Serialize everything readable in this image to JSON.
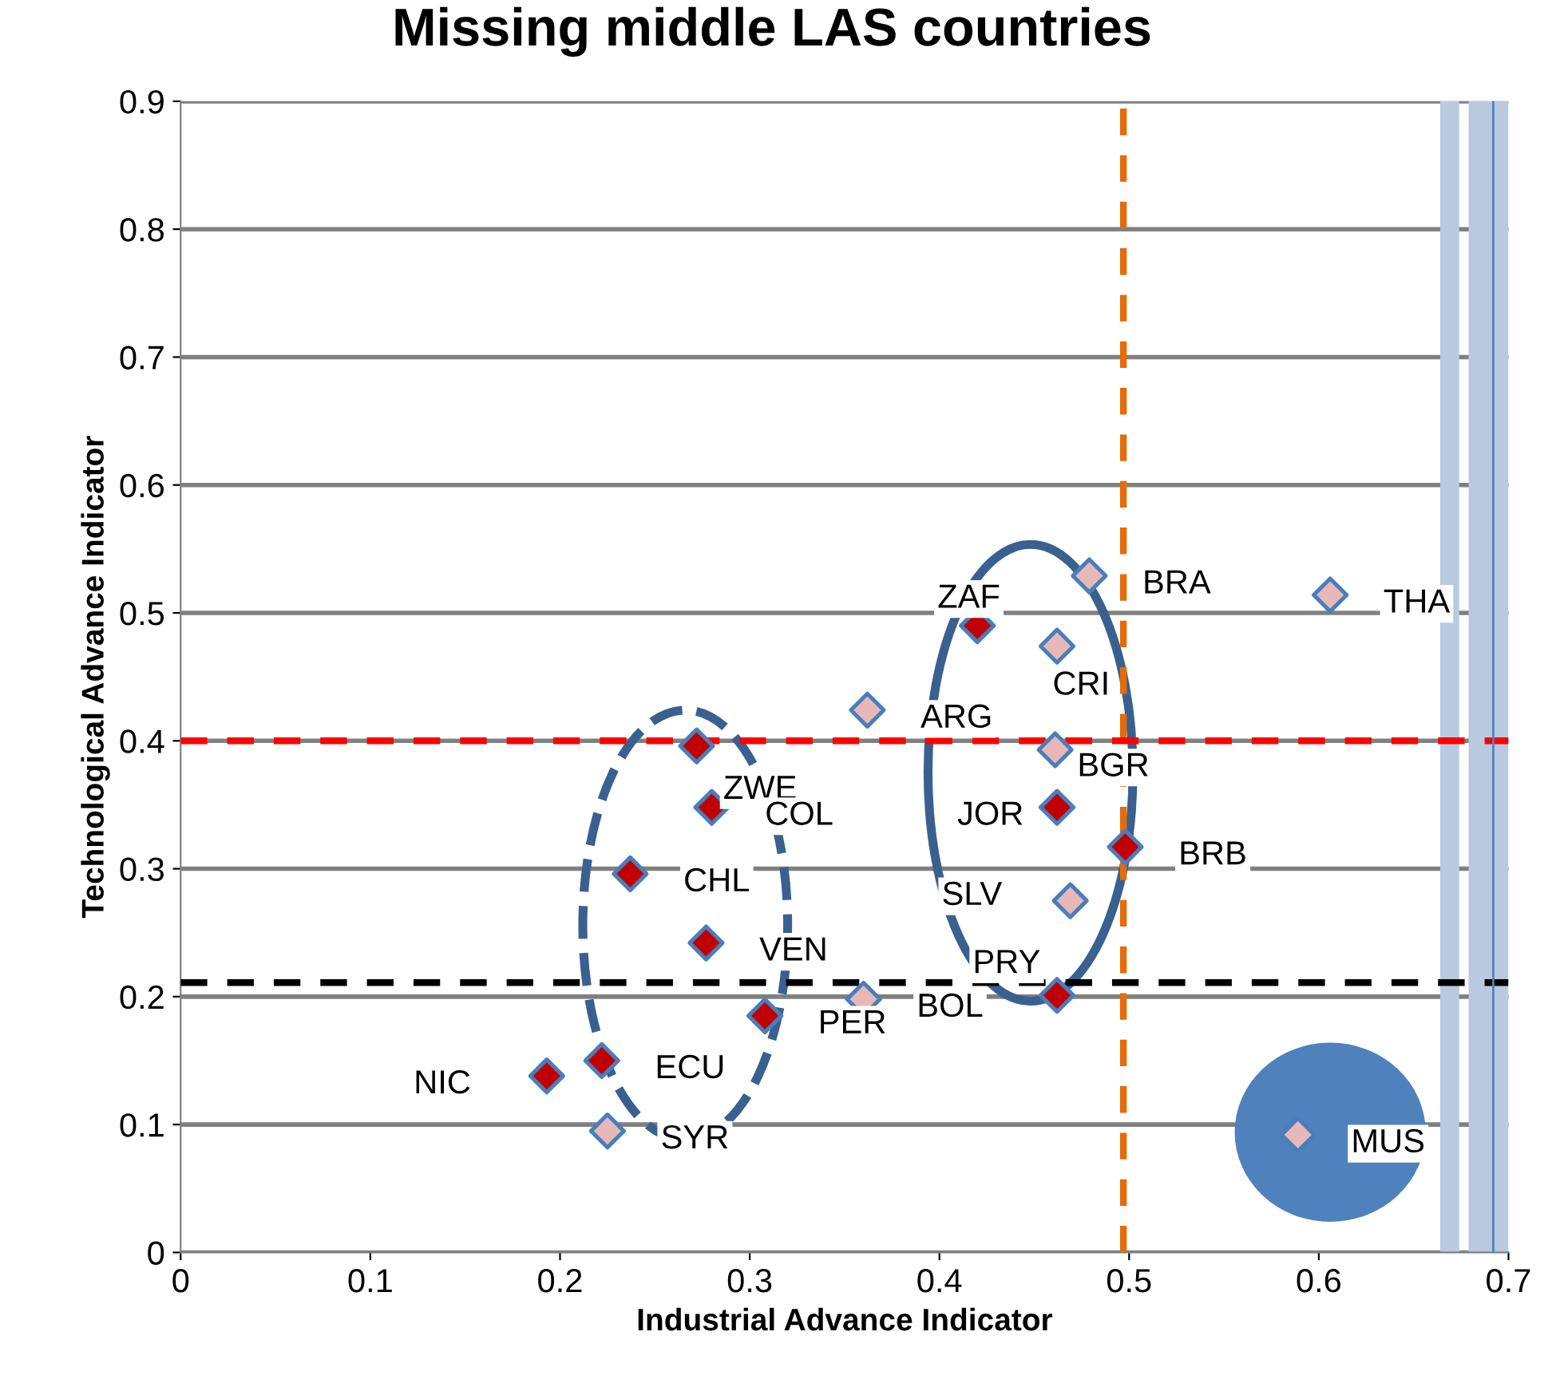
{
  "chart_data": {
    "type": "scatter",
    "title": "Missing middle LAS countries",
    "xlabel": "Industrial Advance Indicator",
    "ylabel": "Technological Advance Indicator",
    "series": [
      {
        "color": "#c00000",
        "x": [
          0.42,
          0.272,
          0.28,
          0.237,
          0.277,
          0.308,
          0.222,
          0.193,
          0.462,
          0.498,
          0.462
        ],
        "values": [
          0.49,
          0.396,
          0.348,
          0.296,
          0.242,
          0.185,
          0.15,
          0.138,
          0.348,
          0.317,
          0.201
        ]
      },
      {
        "color": "#e6b9b8",
        "x": [
          0.479,
          0.462,
          0.362,
          0.461,
          0.469,
          0.36,
          0.225,
          0.606,
          0.589
        ],
        "values": [
          0.529,
          0.474,
          0.424,
          0.393,
          0.275,
          0.198,
          0.095,
          0.514,
          0.092
        ]
      }
    ],
    "annotations": [
      {
        "text": "ZAF",
        "x": 0.42,
        "y": 0.49
      },
      {
        "text": "ZWE",
        "x": 0.272,
        "y": 0.396
      },
      {
        "text": "COL",
        "x": 0.28,
        "y": 0.348
      },
      {
        "text": "CHL",
        "x": 0.237,
        "y": 0.296
      },
      {
        "text": "VEN",
        "x": 0.277,
        "y": 0.242
      },
      {
        "text": "PER",
        "x": 0.308,
        "y": 0.185
      },
      {
        "text": "ECU",
        "x": 0.222,
        "y": 0.15
      },
      {
        "text": "NIC",
        "x": 0.193,
        "y": 0.138
      },
      {
        "text": "JOR",
        "x": 0.462,
        "y": 0.348
      },
      {
        "text": "BRB",
        "x": 0.498,
        "y": 0.317
      },
      {
        "text": "PRY",
        "x": 0.462,
        "y": 0.201
      },
      {
        "text": "BRA",
        "x": 0.479,
        "y": 0.529
      },
      {
        "text": "CRI",
        "x": 0.462,
        "y": 0.474
      },
      {
        "text": "ARG",
        "x": 0.362,
        "y": 0.424
      },
      {
        "text": "BGR",
        "x": 0.461,
        "y": 0.393
      },
      {
        "text": "SLV",
        "x": 0.469,
        "y": 0.275
      },
      {
        "text": "BOL",
        "x": 0.36,
        "y": 0.198
      },
      {
        "text": "SYR",
        "x": 0.225,
        "y": 0.095
      },
      {
        "text": "THA",
        "x": 0.606,
        "y": 0.514
      },
      {
        "text": "MUS",
        "x": 0.589,
        "y": 0.092
      }
    ],
    "ref_lines": [
      {
        "axis": "x",
        "value": 0.497,
        "color": "#e46c0a",
        "line_style": "dashed"
      },
      {
        "axis": "y",
        "value": 0.4,
        "color": "#ff0000",
        "line_style": "dashed"
      },
      {
        "axis": "y",
        "value": 0.211,
        "color": "#000000",
        "line_style": "dashed"
      },
      {
        "axis": "x",
        "value": 0.692,
        "color": "#4f81bd",
        "line_style": "solid"
      }
    ],
    "bands": [
      {
        "axis": "x",
        "from": 0.664,
        "to": 0.674,
        "color": "#b9c9e0"
      },
      {
        "axis": "x",
        "from": 0.679,
        "to": 0.7,
        "color": "#b9c9e0"
      }
    ],
    "xlim": [
      0,
      0.7
    ],
    "ylim": [
      0,
      0.9
    ],
    "xticks": [
      0,
      0.1,
      0.2,
      0.3,
      0.4,
      0.5,
      0.6,
      0.7
    ],
    "yticks": [
      0,
      0.1,
      0.2,
      0.3,
      0.4,
      0.5,
      0.6,
      0.7,
      0.8,
      0.9
    ],
    "grid": "y",
    "marker": "diamond",
    "legend": false
  }
}
